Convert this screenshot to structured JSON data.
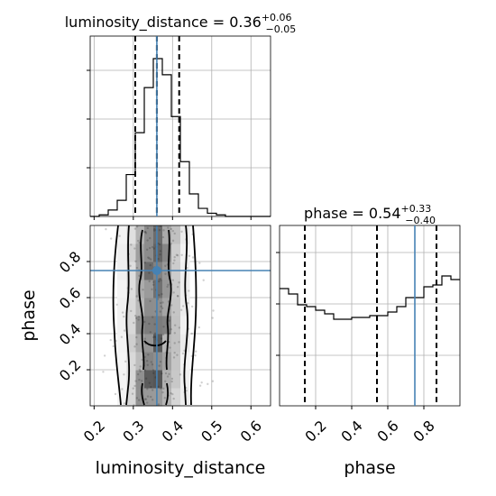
{
  "chart_data": {
    "type": "corner",
    "parameters": [
      "luminosity_distance",
      "phase"
    ],
    "titles": {
      "luminosity_distance": {
        "name": "luminosity_distance",
        "median": "0.36",
        "plus": "+0.06",
        "minus": "−0.05"
      },
      "phase": {
        "name": "phase",
        "median": "0.54",
        "plus": "+0.33",
        "minus": "−0.40"
      }
    },
    "xlabels": [
      "luminosity_distance",
      "phase"
    ],
    "ylabels": [
      "",
      "phase"
    ],
    "ticks": {
      "luminosity_distance": {
        "values": [
          0.2,
          0.3,
          0.4,
          0.5,
          0.6
        ],
        "labels": [
          "0.2",
          "0.3",
          "0.4",
          "0.5",
          "0.6"
        ]
      },
      "phase": {
        "values": [
          0.2,
          0.4,
          0.6,
          0.8
        ],
        "labels": [
          "0.2",
          "0.4",
          "0.6",
          "0.8"
        ]
      }
    },
    "ranges": {
      "luminosity_distance": [
        0.19,
        0.65
      ],
      "phase": [
        0.0,
        1.0
      ]
    },
    "truths": {
      "luminosity_distance": 0.36,
      "phase": 0.75
    },
    "quantiles": {
      "luminosity_distance": [
        0.305,
        0.36,
        0.417
      ],
      "phase": [
        0.14,
        0.54,
        0.87
      ]
    },
    "hist_luminosity_distance": {
      "bin_edges": [
        0.19,
        0.213,
        0.236,
        0.259,
        0.282,
        0.305,
        0.328,
        0.351,
        0.374,
        0.397,
        0.42,
        0.443,
        0.466,
        0.489,
        0.512,
        0.535,
        0.558,
        0.581,
        0.604,
        0.627,
        0.65
      ],
      "counts": [
        0,
        1,
        4,
        10,
        26,
        52,
        80,
        98,
        88,
        62,
        34,
        14,
        5,
        2,
        1,
        0,
        0,
        0,
        0,
        0
      ]
    },
    "hist_phase": {
      "bin_edges": [
        0,
        0.05,
        0.1,
        0.15,
        0.2,
        0.25,
        0.3,
        0.35,
        0.4,
        0.45,
        0.5,
        0.55,
        0.6,
        0.65,
        0.7,
        0.75,
        0.8,
        0.85,
        0.9,
        0.95,
        1.0
      ],
      "counts": [
        65,
        62,
        56,
        55,
        53,
        51,
        48,
        48,
        49,
        49,
        50,
        50,
        52,
        55,
        60,
        60,
        66,
        67,
        72,
        70
      ]
    },
    "hist_phase_ymax": 100,
    "grid": true
  }
}
